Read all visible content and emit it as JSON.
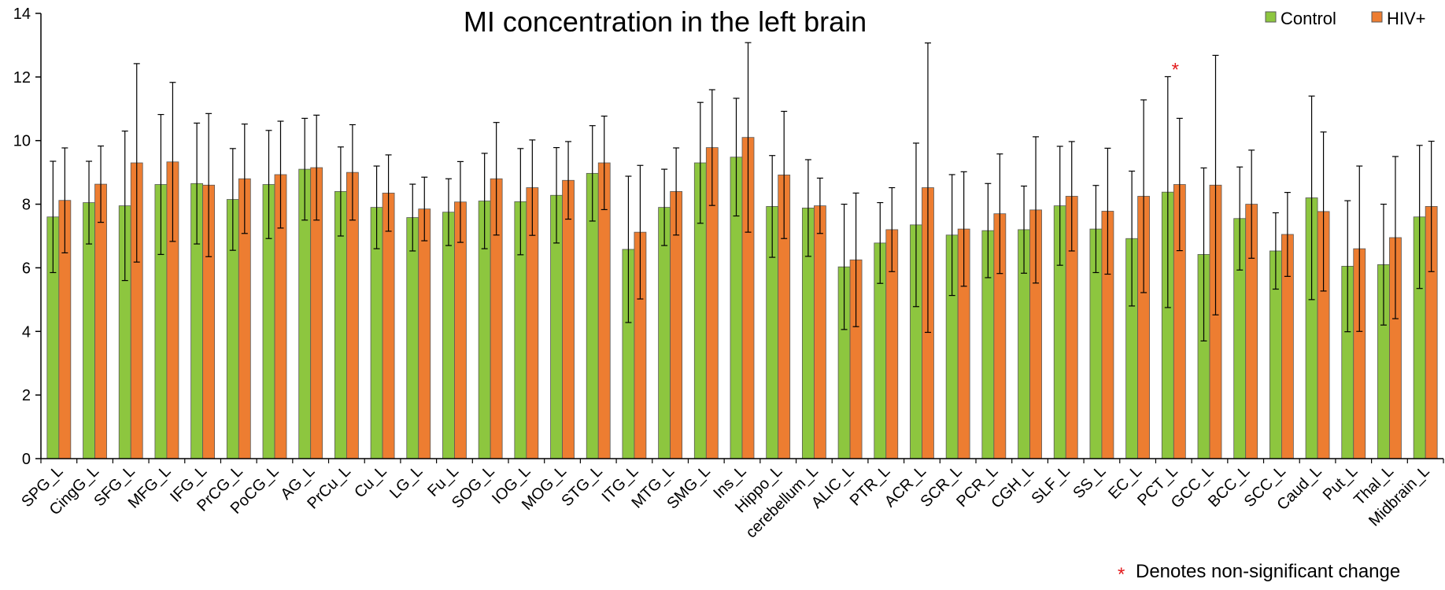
{
  "chart_data": {
    "type": "bar",
    "title": "MI concentration in the left brain",
    "xlabel": "",
    "ylabel": "",
    "ylim": [
      0,
      14
    ],
    "yticks": [
      0,
      2,
      4,
      6,
      8,
      10,
      12,
      14
    ],
    "categories": [
      "SPG_L",
      "CingG_L",
      "SFG_L",
      "MFG_L",
      "IFG_L",
      "PrCG_L",
      "PoCG_L",
      "AG_L",
      "PrCu_L",
      "Cu_L",
      "LG_L",
      "Fu_L",
      "SOG_L",
      "IOG_L",
      "MOG_L",
      "STG_L",
      "ITG_L",
      "MTG_L",
      "SMG_L",
      "Ins_L",
      "Hippo_L",
      "cerebellum_L",
      "ALIC_L",
      "PTR_L",
      "ACR_L",
      "SCR_L",
      "PCR_L",
      "CGH_L",
      "SLF_L",
      "SS_L",
      "EC_L",
      "PCT_L",
      "GCC_L",
      "BCC_L",
      "SCC_L",
      "Caud_L",
      "Put_L",
      "Thal_L",
      "Midbrain_L"
    ],
    "series": [
      {
        "name": "Control",
        "color": "#8dc63f",
        "values": [
          7.6,
          8.05,
          7.95,
          8.62,
          8.65,
          8.15,
          8.62,
          9.1,
          8.4,
          7.9,
          7.58,
          7.75,
          8.1,
          8.08,
          8.28,
          8.97,
          6.58,
          7.9,
          9.3,
          9.48,
          7.93,
          7.88,
          6.03,
          6.78,
          7.35,
          7.03,
          7.17,
          7.2,
          7.95,
          7.22,
          6.92,
          8.38,
          6.42,
          7.55,
          6.53,
          8.2,
          6.05,
          6.1,
          7.6
        ],
        "errors": [
          1.75,
          1.3,
          2.35,
          2.2,
          1.9,
          1.6,
          1.7,
          1.6,
          1.4,
          1.3,
          1.05,
          1.05,
          1.5,
          1.67,
          1.5,
          1.5,
          2.3,
          1.2,
          1.9,
          1.85,
          1.6,
          1.52,
          1.97,
          1.27,
          2.57,
          1.9,
          1.48,
          1.37,
          1.87,
          1.37,
          2.12,
          3.63,
          2.72,
          1.62,
          1.2,
          3.2,
          2.06,
          1.9,
          2.25
        ]
      },
      {
        "name": "HIV+",
        "color": "#ed7d31",
        "values": [
          8.12,
          8.63,
          9.3,
          9.33,
          8.6,
          8.8,
          8.93,
          9.15,
          9.0,
          8.35,
          7.85,
          8.07,
          8.8,
          8.52,
          8.75,
          9.3,
          7.12,
          8.4,
          9.78,
          10.1,
          8.92,
          7.95,
          6.25,
          7.2,
          8.52,
          7.22,
          7.7,
          7.82,
          8.25,
          7.78,
          8.25,
          8.62,
          8.6,
          8.0,
          7.05,
          7.77,
          6.6,
          6.95,
          7.93
        ]
      },
      {
        "name": "HIV+ error",
        "values": [
          1.65,
          1.2,
          3.12,
          2.5,
          2.25,
          1.72,
          1.68,
          1.65,
          1.5,
          1.2,
          1.0,
          1.27,
          1.77,
          1.5,
          1.22,
          1.47,
          2.1,
          1.37,
          1.82,
          2.98,
          2.0,
          0.87,
          2.1,
          1.32,
          4.55,
          1.8,
          1.88,
          2.3,
          1.72,
          1.98,
          3.03,
          2.08,
          4.08,
          1.7,
          1.32,
          2.5,
          2.6,
          2.55,
          2.05
        ]
      }
    ],
    "legend": {
      "position": "top-right",
      "entries": [
        "Control",
        "HIV+"
      ]
    },
    "annotations": {
      "significance_marker": "*",
      "marked_category": "PCT_L",
      "note_symbol": "*",
      "note_text": "Denotes non-significant change"
    },
    "colors": {
      "star": "#e31a1c",
      "axis": "#000000",
      "bar_outline": "#595959"
    }
  }
}
